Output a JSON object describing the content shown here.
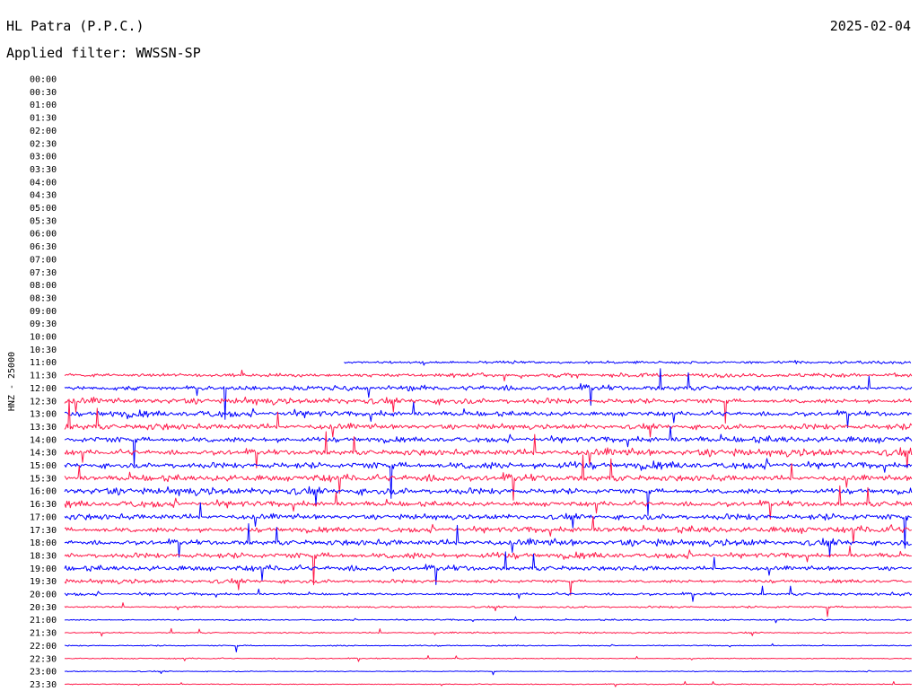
{
  "header": {
    "station": "HL Patra (P.P.C.)",
    "date": "2025-02-04",
    "filter_label": "Applied filter: WWSSN-SP"
  },
  "chart_data": {
    "type": "line",
    "title": "HL Patra (P.P.C.)",
    "ylabel": "HNZ - 25000",
    "row_labels": [
      "00:00",
      "00:30",
      "01:00",
      "01:30",
      "02:00",
      "02:30",
      "03:00",
      "03:30",
      "04:00",
      "04:30",
      "05:00",
      "05:30",
      "06:00",
      "06:30",
      "07:00",
      "07:30",
      "08:00",
      "08:30",
      "09:00",
      "09:30",
      "10:00",
      "10:30",
      "11:00",
      "11:30",
      "12:00",
      "12:30",
      "13:00",
      "13:30",
      "14:00",
      "14:30",
      "15:00",
      "15:30",
      "16:00",
      "16:30",
      "17:00",
      "17:30",
      "18:00",
      "18:30",
      "19:00",
      "19:30",
      "20:00",
      "20:30",
      "21:00",
      "21:30",
      "22:00",
      "22:30",
      "23:00",
      "23:30"
    ],
    "colors": {
      "even_rows": "#0000ff",
      "odd_rows": "#ff1a4a"
    },
    "data_start_row": "11:00",
    "data_start_fraction": 0.33,
    "row_amplitude": [
      0,
      0,
      0,
      0,
      0,
      0,
      0,
      0,
      0,
      0,
      0,
      0,
      0,
      0,
      0,
      0,
      0,
      0,
      0,
      0,
      0,
      0,
      0.45,
      0.6,
      0.75,
      0.85,
      0.9,
      0.95,
      1.0,
      1.0,
      1.0,
      1.0,
      1.0,
      0.95,
      0.95,
      0.95,
      0.9,
      0.85,
      0.8,
      0.6,
      0.45,
      0.3,
      0.22,
      0.2,
      0.18,
      0.16,
      0.15,
      0.15
    ],
    "legend": "none",
    "grid": false
  }
}
